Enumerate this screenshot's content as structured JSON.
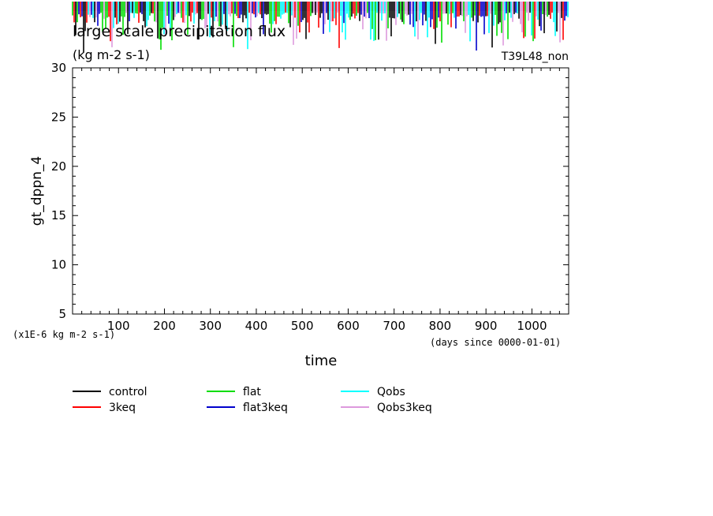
{
  "chart_data": {
    "type": "line",
    "title": "large scale precipitation flux",
    "subtitle": "(kg m-2 s-1)",
    "experiment_label": "T39L48_non",
    "ylabel": "gt_dppn_4",
    "xlabel": "time",
    "x_unit_note": "(days since 0000-01-01)",
    "y_unit_note": "(x1E-6 kg m-2 s-1)",
    "xlim": [
      0,
      1080
    ],
    "ylim": [
      5,
      30
    ],
    "x_ticks": [
      "100",
      "200",
      "300",
      "400",
      "500",
      "600",
      "700",
      "800",
      "900",
      "1000"
    ],
    "y_ticks": [
      "5",
      "10",
      "15",
      "20",
      "25",
      "30"
    ],
    "grid": false,
    "legend_position": "bottom",
    "data_note": "all series lie above the 30 upper y-limit; only clipped spikes appear above the plot frame, roughly 31 to 36",
    "series": [
      {
        "name": "control",
        "color": "#000000"
      },
      {
        "name": "3keq",
        "color": "#ff0000"
      },
      {
        "name": "flat",
        "color": "#00dd00"
      },
      {
        "name": "flat3keq",
        "color": "#0000cc"
      },
      {
        "name": "Qobs",
        "color": "#00ffff"
      },
      {
        "name": "Qobs3keq",
        "color": "#dd99dd"
      }
    ]
  }
}
